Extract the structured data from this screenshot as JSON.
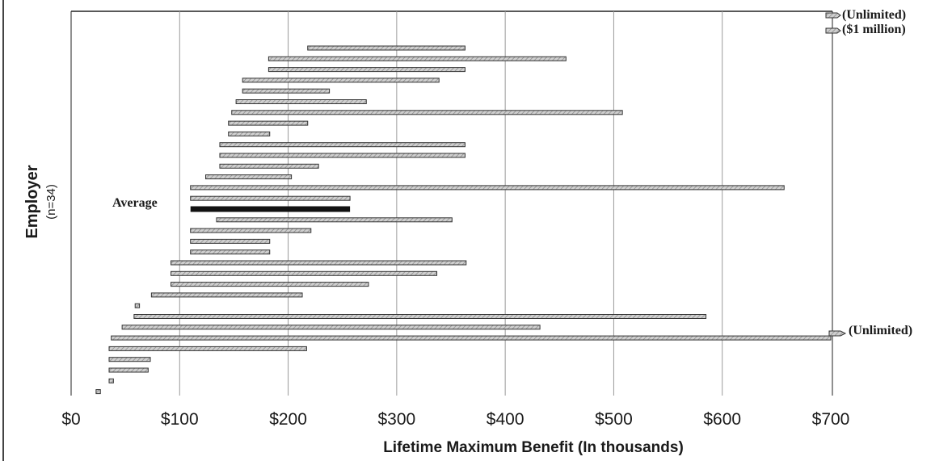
{
  "chart_data": {
    "type": "bar",
    "subtype": "floating-range-horizontal",
    "xlabel": "Lifetime Maximum Benefit (In thousands)",
    "ylabel": "Employer",
    "ylabel_sub": "(n=34)",
    "xlim": [
      0,
      700
    ],
    "x_ticks": [
      "$0",
      "$100",
      "$200",
      "$300",
      "$400",
      "$500",
      "$600",
      "$700"
    ],
    "grid": true,
    "legend": "none",
    "colors": {
      "bar": "#bdbdbd",
      "bar_stroke": "#333333",
      "average_bar": "#111111",
      "grid": "#9a9a9a"
    },
    "ranges": [
      {
        "start": 218,
        "end": 363
      },
      {
        "start": 182,
        "end": 456,
        "arrow_label": "($1 million)"
      },
      {
        "start": 182,
        "end": 363
      },
      {
        "start": 158,
        "end": 339
      },
      {
        "start": 158,
        "end": 238
      },
      {
        "start": 152,
        "end": 272
      },
      {
        "start": 148,
        "end": 508
      },
      {
        "start": 145,
        "end": 218
      },
      {
        "start": 145,
        "end": 183
      },
      {
        "start": 137,
        "end": 363
      },
      {
        "start": 137,
        "end": 363
      },
      {
        "start": 137,
        "end": 228
      },
      {
        "start": 124,
        "end": 203
      },
      {
        "start": 110,
        "end": 657
      },
      {
        "start": 110,
        "end": 257
      },
      {
        "start": 110,
        "end": 257,
        "average": true,
        "label": "Average"
      },
      {
        "start": 134,
        "end": 351
      },
      {
        "start": 110,
        "end": 221
      },
      {
        "start": 110,
        "end": 183
      },
      {
        "start": 110,
        "end": 183
      },
      {
        "start": 92,
        "end": 364
      },
      {
        "start": 92,
        "end": 337
      },
      {
        "start": 92,
        "end": 274
      },
      {
        "start": 74,
        "end": 213
      },
      {
        "start": 59,
        "end": 63
      },
      {
        "start": 58,
        "end": 585
      },
      {
        "start": 47,
        "end": 432
      },
      {
        "start": 37,
        "end": 700,
        "arrow_label": "(Unlimited)"
      },
      {
        "start": 35,
        "end": 217
      },
      {
        "start": 35,
        "end": 73
      },
      {
        "start": 35,
        "end": 71
      },
      {
        "start": 35,
        "end": 39
      },
      {
        "start": 23,
        "end": 27
      }
    ],
    "annotations": {
      "top_unlimited": "(Unlimited)",
      "top_million": "($1 million)",
      "bottom_unlimited": "(Unlimited)",
      "average": "Average"
    }
  }
}
